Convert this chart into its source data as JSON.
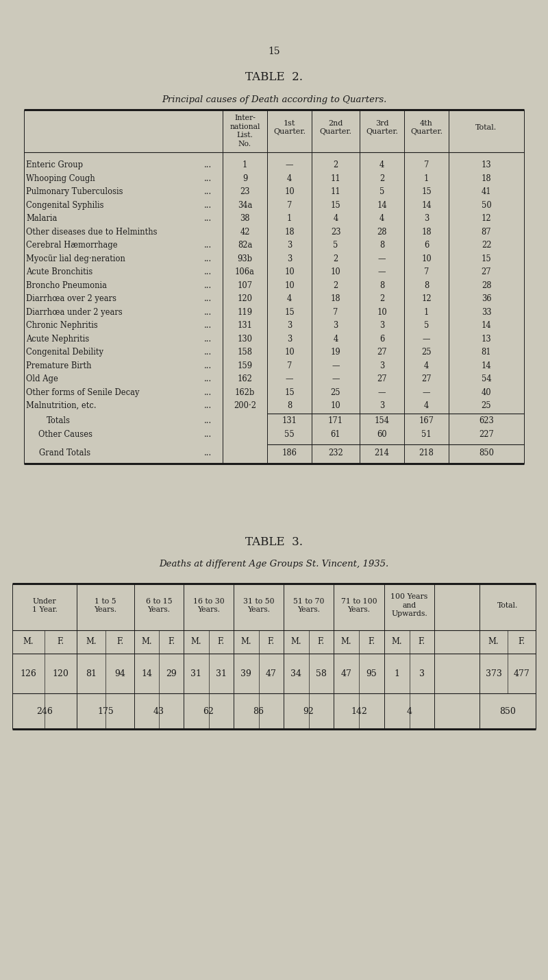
{
  "page_number": "15",
  "bg_color": "#ccc9bb",
  "table2_title": "TABLE  2.",
  "table2_subtitle": "Principal causes of Death according to Quarters.",
  "table2_rows": [
    [
      "Enteric Group",
      "...",
      "1",
      "—",
      "2",
      "4",
      "7",
      "13"
    ],
    [
      "Whooping Cough",
      "...",
      "9",
      "4",
      "11",
      "2",
      "1",
      "18"
    ],
    [
      "Pulmonary Tuberculosis",
      "...",
      "23",
      "10",
      "11",
      "5",
      "15",
      "41"
    ],
    [
      "Congenital Syphilis",
      "...",
      "34a",
      "7",
      "15",
      "14",
      "14",
      "50"
    ],
    [
      "Malaria",
      "...",
      "38",
      "1",
      "4",
      "4",
      "3",
      "12"
    ],
    [
      "Other diseases due to Helminths",
      "",
      "42",
      "18",
      "23",
      "28",
      "18",
      "87"
    ],
    [
      "Cerebral Hæmorrhage",
      "...",
      "82a",
      "3",
      "5",
      "8",
      "6",
      "22"
    ],
    [
      "Myocür lial deg·neration",
      "...",
      "93b",
      "3",
      "2",
      "—",
      "10",
      "15"
    ],
    [
      "Acute Bronchitis",
      "...",
      "106a",
      "10",
      "10",
      "—",
      "7",
      "27"
    ],
    [
      "Broncho Pneumonia",
      "...",
      "107",
      "10",
      "2",
      "8",
      "8",
      "28"
    ],
    [
      "Diarrhœa over 2 years",
      "...",
      "120",
      "4",
      "18",
      "2",
      "12",
      "36"
    ],
    [
      "Diarrhœa under 2 years",
      "...",
      "119",
      "15",
      "7",
      "10",
      "1",
      "33"
    ],
    [
      "Chronic Nephritis",
      "...",
      "131",
      "3",
      "3",
      "3",
      "5",
      "14"
    ],
    [
      "Acute Nephritis",
      "...",
      "130",
      "3",
      "4",
      "6",
      "—",
      "13"
    ],
    [
      "Congenital Debility",
      "...",
      "158",
      "10",
      "19",
      "27",
      "25",
      "81"
    ],
    [
      "Premature Birth",
      "...",
      "159",
      "7",
      "—",
      "3",
      "4",
      "14"
    ],
    [
      "Old Age",
      "...",
      "162",
      "—",
      "—",
      "27",
      "27",
      "54"
    ],
    [
      "Other forms of Senile Decay",
      "...",
      "162b",
      "15",
      "25",
      "—",
      "—",
      "40"
    ],
    [
      "Malnutrition, etc.",
      "...",
      "200·2",
      "8",
      "10",
      "3",
      "4",
      "25"
    ]
  ],
  "table2_totals": [
    "Totals",
    "...",
    "",
    "131",
    "171",
    "154",
    "167",
    "623"
  ],
  "table2_other": [
    "Other Causes",
    "...",
    "",
    "55",
    "61",
    "60",
    "51",
    "227"
  ],
  "table2_grand": [
    "Grand Totals",
    "...",
    "",
    "186",
    "232",
    "214",
    "218",
    "850"
  ],
  "table3_title": "TABLE  3.",
  "table3_subtitle": "Deaths at different Age Groups St. Vincent, 1935.",
  "table3_age_groups": [
    "Under\n1 Year.",
    "1 to 5\nYears.",
    "6 to 15\nYears.",
    "16 to 30\nYears.",
    "31 to 50\nYears.",
    "51 to 70\nYears.",
    "71 to 100\nYears.",
    "100 Years\nand\nUpwards.",
    "Total."
  ],
  "table3_data_row": [
    "126",
    "120",
    "81",
    "94",
    "14",
    "29",
    "31",
    "31",
    "39",
    "47",
    "34",
    "58",
    "47",
    "95",
    "1",
    "3",
    "373",
    "477"
  ],
  "table3_total_row": [
    "246",
    "175",
    "43",
    "62",
    "86",
    "92",
    "142",
    "4",
    "850"
  ]
}
